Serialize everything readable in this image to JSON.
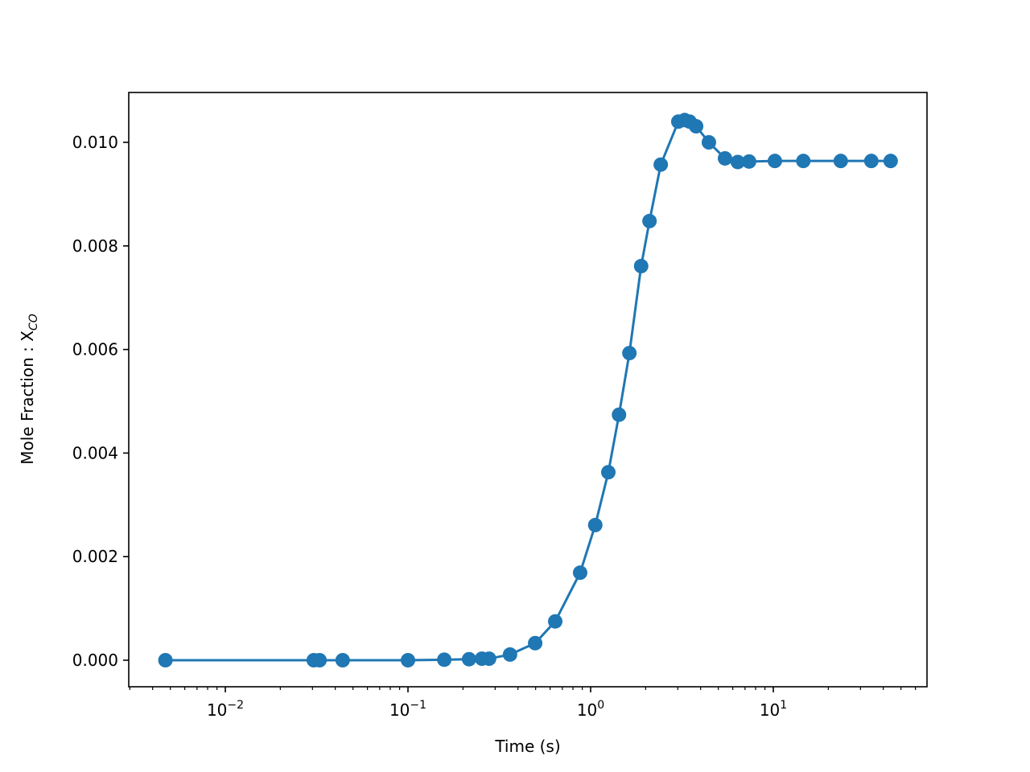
{
  "chart_data": {
    "type": "line",
    "title": "",
    "xlabel": "Time (s)",
    "ylabel": "Mole Fraction : X_CO",
    "ylabel_main": "Mole Fraction : X",
    "ylabel_sub": "CO",
    "x_scale": "log",
    "xlim": [
      0.003,
      65
    ],
    "ylim": [
      -0.0005,
      0.0109
    ],
    "x_ticks": [
      {
        "value": 0.01,
        "label_base": "10",
        "label_exp": "−2"
      },
      {
        "value": 0.1,
        "label_base": "10",
        "label_exp": "−1"
      },
      {
        "value": 1,
        "label_base": "10",
        "label_exp": "0"
      },
      {
        "value": 10,
        "label_base": "10",
        "label_exp": "1"
      }
    ],
    "y_ticks": [
      {
        "value": 0.0,
        "label": "0.000"
      },
      {
        "value": 0.002,
        "label": "0.002"
      },
      {
        "value": 0.004,
        "label": "0.004"
      },
      {
        "value": 0.006,
        "label": "0.006"
      },
      {
        "value": 0.008,
        "label": "0.008"
      },
      {
        "value": 0.01,
        "label": "0.010"
      }
    ],
    "grid": false,
    "legend": null,
    "series": [
      {
        "name": "X_CO",
        "color": "#1f77b4",
        "marker": "o",
        "x": [
          0.0047,
          0.0305,
          0.0328,
          0.0439,
          0.1,
          0.158,
          0.216,
          0.254,
          0.278,
          0.362,
          0.497,
          0.64,
          0.876,
          1.06,
          1.25,
          1.43,
          1.63,
          1.89,
          2.1,
          2.42,
          3.02,
          3.27,
          3.48,
          3.78,
          4.44,
          5.44,
          6.39,
          7.37,
          10.2,
          14.6,
          23.4,
          34.4,
          43.9
        ],
        "y": [
          0.0,
          0.0,
          0.0,
          0.0,
          0.0,
          1e-05,
          2e-05,
          3e-05,
          3e-05,
          0.00011,
          0.00033,
          0.00075,
          0.00169,
          0.00261,
          0.00363,
          0.00474,
          0.00593,
          0.00761,
          0.00848,
          0.00957,
          0.0104,
          0.01043,
          0.0104,
          0.01031,
          0.01,
          0.00969,
          0.00962,
          0.00963,
          0.00964,
          0.00964,
          0.00964,
          0.00964,
          0.00964
        ]
      }
    ]
  }
}
